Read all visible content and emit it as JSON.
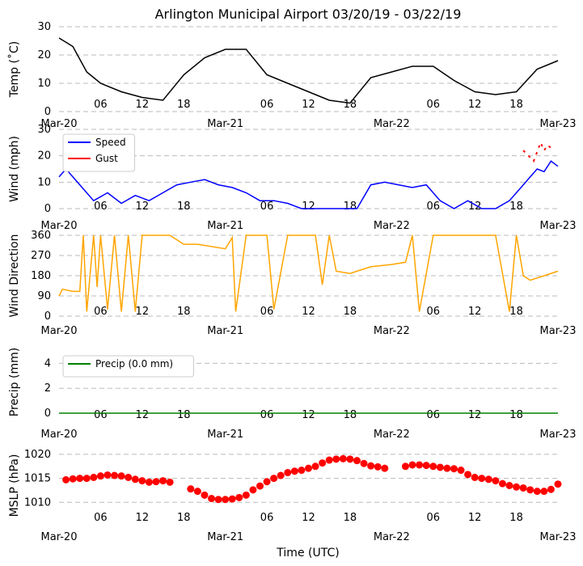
{
  "title": "Arlington Municipal Airport 03/20/19 - 03/22/19",
  "xlabel": "Time (UTC)",
  "x_tick_labels": [
    "Mar-20",
    "06",
    "12",
    "18",
    "Mar-21",
    "06",
    "12",
    "18",
    "Mar-22",
    "06",
    "12",
    "18",
    "Mar-23"
  ],
  "colors": {
    "temp": "#000000",
    "speed": "#0000ff",
    "gust": "#ff0000",
    "direction": "#ffa500",
    "precip": "#008000",
    "mslp": "#ff0000",
    "grid": "#bbbbbb"
  },
  "chart_data": [
    {
      "type": "line",
      "ylabel": "Temp (˚C)",
      "ylim": [
        0,
        30
      ],
      "yticks": [
        0,
        10,
        20,
        30
      ],
      "grid": true,
      "x_hours": [
        0,
        2,
        4,
        6,
        9,
        12,
        15,
        18,
        21,
        24,
        27,
        30,
        33,
        36,
        39,
        42,
        45,
        48,
        51,
        54,
        57,
        60,
        63,
        66,
        69,
        72
      ],
      "series": [
        {
          "values": [
            26,
            23,
            14,
            10,
            7,
            5,
            4,
            13,
            19,
            22,
            22,
            13,
            10,
            7,
            4,
            3,
            12,
            14,
            16,
            16,
            11,
            7,
            6,
            7,
            15,
            18
          ]
        }
      ]
    },
    {
      "type": "line",
      "ylabel": "Wind (mph)",
      "ylim": [
        0,
        30
      ],
      "yticks": [
        0,
        10,
        20,
        30
      ],
      "grid": true,
      "legend": "top-left",
      "x_hours": [
        0,
        1,
        3,
        5,
        7,
        9,
        11,
        13,
        15,
        17,
        19,
        21,
        23,
        25,
        27,
        29,
        31,
        33,
        35,
        37,
        39,
        41,
        43,
        45,
        47,
        49,
        51,
        53,
        55,
        57,
        59,
        61,
        63,
        65,
        67,
        68,
        69,
        70,
        71,
        72
      ],
      "series": [
        {
          "name": "Speed",
          "values": [
            12,
            15,
            9,
            3,
            6,
            2,
            5,
            3,
            6,
            9,
            10,
            11,
            9,
            8,
            6,
            3,
            3,
            2,
            0,
            0,
            0,
            0,
            0,
            9,
            10,
            9,
            8,
            9,
            3,
            0,
            3,
            0,
            0,
            3,
            9,
            12,
            15,
            14,
            18,
            16
          ]
        },
        {
          "name": "Gust",
          "x_hours": [
            67,
            68.5,
            69.5,
            70,
            70.5,
            71,
            71.5
          ],
          "values": [
            22,
            18,
            25,
            22,
            24,
            23,
            22
          ]
        }
      ]
    },
    {
      "type": "line",
      "ylabel": "Wind Direction",
      "ylim": [
        0,
        360
      ],
      "yticks": [
        0,
        90,
        180,
        270,
        360
      ],
      "grid": true,
      "x_hours": [
        0,
        0.5,
        2,
        3,
        3.5,
        4,
        5,
        5.5,
        6,
        7,
        8,
        9,
        10,
        11,
        12,
        14,
        16,
        18,
        20,
        24,
        25,
        25.5,
        27,
        30,
        31,
        33,
        34,
        37,
        38,
        39,
        40,
        42,
        43,
        45,
        48,
        50,
        51,
        52,
        54,
        56,
        58,
        60,
        63,
        65,
        66,
        67,
        68,
        70,
        72
      ],
      "series": [
        {
          "values": [
            90,
            120,
            110,
            110,
            360,
            20,
            360,
            130,
            360,
            30,
            360,
            20,
            360,
            20,
            360,
            360,
            360,
            320,
            320,
            300,
            350,
            20,
            360,
            360,
            30,
            360,
            360,
            360,
            140,
            360,
            200,
            190,
            200,
            220,
            230,
            240,
            360,
            20,
            360,
            360,
            360,
            360,
            360,
            20,
            360,
            180,
            160,
            180,
            200
          ]
        }
      ]
    },
    {
      "type": "line",
      "ylabel": "Precip (mm)",
      "ylim": [
        0,
        5
      ],
      "yticks": [
        0,
        2,
        4
      ],
      "grid": true,
      "legend": "top-left",
      "x_hours": [
        0,
        72
      ],
      "series": [
        {
          "name": "Precip (0.0 mm)",
          "values": [
            0,
            0
          ]
        }
      ]
    },
    {
      "type": "scatter",
      "ylabel": "MSLP (hPa)",
      "ylim": [
        1006,
        1021
      ],
      "yticks": [
        1010,
        1015,
        1020
      ],
      "grid": true,
      "x_hours": [
        1,
        2,
        3,
        4,
        5,
        6,
        7,
        8,
        9,
        10,
        11,
        12,
        13,
        14,
        15,
        16,
        19,
        20,
        21,
        22,
        23,
        24,
        25,
        26,
        27,
        28,
        29,
        30,
        31,
        32,
        33,
        34,
        35,
        36,
        37,
        38,
        39,
        40,
        41,
        42,
        43,
        44,
        45,
        46,
        47,
        50,
        51,
        52,
        53,
        54,
        55,
        56,
        57,
        58,
        59,
        60,
        61,
        62,
        63,
        64,
        65,
        66,
        67,
        68,
        69,
        70,
        71,
        72
      ],
      "series": [
        {
          "values": [
            1014.7,
            1014.9,
            1015.0,
            1015.0,
            1015.2,
            1015.5,
            1015.7,
            1015.6,
            1015.5,
            1015.2,
            1014.8,
            1014.5,
            1014.2,
            1014.3,
            1014.5,
            1014.2,
            1012.8,
            1012.3,
            1011.5,
            1010.8,
            1010.6,
            1010.6,
            1010.7,
            1011.0,
            1011.5,
            1012.6,
            1013.4,
            1014.3,
            1015.0,
            1015.6,
            1016.2,
            1016.5,
            1016.7,
            1017.1,
            1017.5,
            1018.2,
            1018.8,
            1019.0,
            1019.1,
            1019.0,
            1018.7,
            1018.1,
            1017.6,
            1017.4,
            1017.1,
            1017.5,
            1017.8,
            1017.8,
            1017.7,
            1017.5,
            1017.3,
            1017.1,
            1017.0,
            1016.7,
            1015.8,
            1015.2,
            1015.0,
            1014.8,
            1014.5,
            1013.9,
            1013.5,
            1013.2,
            1013.0,
            1012.6,
            1012.3,
            1012.3,
            1012.7,
            1013.8
          ]
        }
      ]
    }
  ]
}
